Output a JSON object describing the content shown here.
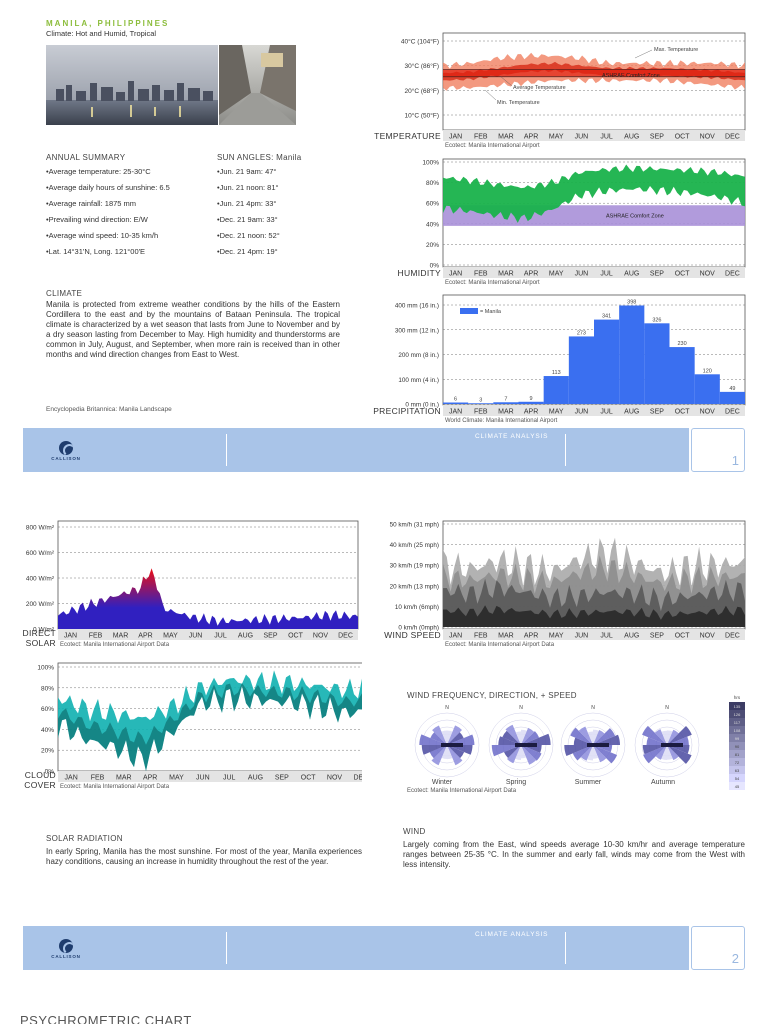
{
  "page1": {
    "city": "MANILA, PHILIPPINES",
    "climate_type": "Climate: Hot and Humid, Tropical",
    "annual_summary": {
      "title": "ANNUAL SUMMARY",
      "items": [
        "•Average temperature: 25-30°C",
        "•Average daily hours of sunshine: 6.5",
        "•Average rainfall: 1875 mm",
        "•Prevailing wind direction: E/W",
        "•Average wind speed: 10-35 km/h",
        "•Lat. 14°31'N, Long. 121°00'E"
      ]
    },
    "sun_angles": {
      "title": "SUN ANGLES: Manila",
      "items": [
        "•Jun. 21 9am:  47°",
        "•Jun. 21 noon: 81°",
        "•Jun. 21 4pm:  33°",
        "•Dec. 21 9am:  33°",
        "•Dec. 21 noon: 52°",
        "•Dec. 21 4pm:  19°"
      ]
    },
    "climate": {
      "title": "CLIMATE",
      "text": "Manila is protected from extreme weather conditions by the hills of the Eastern Cordillera to the east and by the mountains of Bataan Peninsula. The tropical climate is characterized by a wet season that lasts from June to November and by a dry season lasting from December to May. High humidity and thunderstorms are common in July, August, and September, when more rain is received than in other months and wind direction changes from East to West.",
      "source": "Encyclopedia Britannica: Manila Landscape"
    },
    "footer": {
      "title": "CLIMATE ANALYSIS",
      "page": "1",
      "logo": "CALLISON"
    }
  },
  "page2": {
    "solar": {
      "title": "SOLAR RADIATION",
      "text": "In early Spring, Manila has the most sunshine. For most of the year, Manila experiences hazy conditions, causing an increase in humidity throughout the rest of the year."
    },
    "wind": {
      "title": "WIND",
      "text": "Largely coming from the East, wind speeds average 10-30 km/hr and average temperature ranges between 25-35 °C. In the summer and early fall, winds may come from the West with less intensity."
    },
    "wind_rose": {
      "title": "WIND FREQUENCY, DIRECTION, + SPEED",
      "seasons": [
        "Winter",
        "Spring",
        "Summer",
        "Autumn"
      ],
      "north": "N",
      "source": "Ecotect: Manila International Airport Data",
      "legend_top": "hrs",
      "legend_values": [
        "135",
        "126",
        "117",
        "108",
        "99",
        "90",
        "81",
        "72",
        "63",
        "54",
        "45"
      ]
    },
    "footer": {
      "title": "CLIMATE ANALYSIS",
      "page": "2",
      "logo": "CALLISON"
    }
  },
  "page3": {
    "title": "PSYCHROMETRIC CHART"
  },
  "months": [
    "JAN",
    "FEB",
    "MAR",
    "APR",
    "MAY",
    "JUN",
    "JUL",
    "AUG",
    "SEP",
    "OCT",
    "NOV",
    "DEC"
  ],
  "chart_data": [
    {
      "type": "area",
      "label": "TEMPERATURE",
      "source": "Ecotect: Manila International Airport",
      "y_ticks": [
        "40°C  (104°F)",
        "30°C  (86°F)",
        "20°C  (68°F)",
        "10°C  (50°F)"
      ],
      "ylim": [
        5,
        45
      ],
      "annotations": [
        "Max. Temperature",
        "ASHRAE Comfort Zone",
        "Average Temperature",
        "Min. Temperature"
      ],
      "comfort_zone": [
        25.5,
        28.5
      ],
      "colors": {
        "range": "#f08060",
        "avg": "#d8301c",
        "comfort": "#e02010"
      },
      "series": [
        {
          "name": "Max. Temperature",
          "values": [
            30,
            31,
            33,
            34,
            34,
            33,
            31,
            31,
            31,
            31,
            31,
            30
          ]
        },
        {
          "name": "Average Temperature",
          "values": [
            25.5,
            26,
            27.5,
            29,
            29.5,
            28.5,
            27.5,
            27.5,
            27.5,
            27,
            26.5,
            25.5
          ]
        },
        {
          "name": "Min. Temperature",
          "values": [
            21,
            21,
            22,
            23,
            24,
            24,
            24,
            24,
            24,
            23,
            22,
            21
          ]
        }
      ]
    },
    {
      "type": "area",
      "label": "HUMIDITY",
      "source": "Ecotect: Manila International Airport",
      "y_ticks": [
        "100%",
        "80%",
        "60%",
        "40%",
        "20%",
        "0%"
      ],
      "ylim": [
        0,
        100
      ],
      "comfort_label": "ASHRAE Comfort Zone",
      "comfort_zone": [
        38,
        58
      ],
      "colors": {
        "band": "#19b24b",
        "comfort": "#a890d8"
      },
      "series": [
        {
          "name": "Max. Humidity",
          "values": [
            85,
            82,
            78,
            75,
            80,
            90,
            93,
            94,
            93,
            92,
            90,
            86
          ]
        },
        {
          "name": "Min. Humidity",
          "values": [
            55,
            52,
            48,
            45,
            54,
            68,
            72,
            74,
            72,
            70,
            66,
            60
          ]
        }
      ]
    },
    {
      "type": "bar",
      "label": "PRECIPITATION",
      "source": "World Climate: Manila International Airport",
      "legend": "= Manila",
      "y_ticks": [
        "400 mm  (16 in.)",
        "300 mm  (12 in.)",
        "200 mm  (8 in.)",
        "100 mm  (4 in.)",
        "0 mm  (0 in.)"
      ],
      "ylim": [
        0,
        400
      ],
      "color": "#3a6ff0",
      "values": [
        6,
        3,
        7,
        9,
        113,
        273,
        341,
        398,
        326,
        230,
        120,
        49
      ]
    },
    {
      "type": "area",
      "label_lines": [
        "DIRECT",
        "SOLAR"
      ],
      "source": "Ecotect: Manila International Airport Data",
      "y_ticks": [
        "800 W/m²",
        "600 W/m²",
        "400 W/m²",
        "200 W/m²",
        "0 W/m²"
      ],
      "ylim": [
        0,
        800
      ],
      "colors": {
        "low": "#3020c0",
        "high": "#e01020"
      },
      "series": [
        {
          "name": "Direct Solar",
          "values": [
            110,
            180,
            250,
            320,
            150,
            90,
            60,
            70,
            80,
            90,
            110,
            100
          ]
        }
      ]
    },
    {
      "type": "area",
      "label": "WIND SPEED",
      "source": "Ecotect: Manila International Airport Data",
      "y_ticks": [
        "50 km/h  (31 mph)",
        "40 km/h  (25 mph)",
        "30 km/h  (19 mph)",
        "20 km/h  (13 mph)",
        "10 km/h  (6mph)",
        "0 km/h  (0mph)"
      ],
      "ylim": [
        0,
        50
      ],
      "color": "#555555",
      "series": [
        {
          "name": "Max. Wind Speed",
          "values": [
            30,
            28,
            32,
            29,
            27,
            33,
            36,
            31,
            26,
            29,
            30,
            31
          ]
        },
        {
          "name": "Avg. Wind Speed",
          "values": [
            18,
            16,
            19,
            17,
            14,
            15,
            17,
            16,
            13,
            15,
            17,
            18
          ]
        }
      ]
    },
    {
      "type": "area",
      "label_lines": [
        "CLOUD",
        "COVER"
      ],
      "source": "Ecotect: Manila International Airport Data",
      "y_ticks": [
        "100%",
        "80%",
        "60%",
        "40%",
        "20%",
        "0%"
      ],
      "ylim": [
        0,
        100
      ],
      "color": "#10b0b0",
      "series": [
        {
          "name": "Max. Cloud Cover",
          "values": [
            70,
            60,
            55,
            50,
            62,
            80,
            88,
            86,
            85,
            82,
            78,
            80
          ]
        },
        {
          "name": "Min. Cloud Cover",
          "values": [
            45,
            30,
            22,
            10,
            38,
            65,
            70,
            68,
            66,
            62,
            55,
            60
          ]
        }
      ]
    }
  ]
}
